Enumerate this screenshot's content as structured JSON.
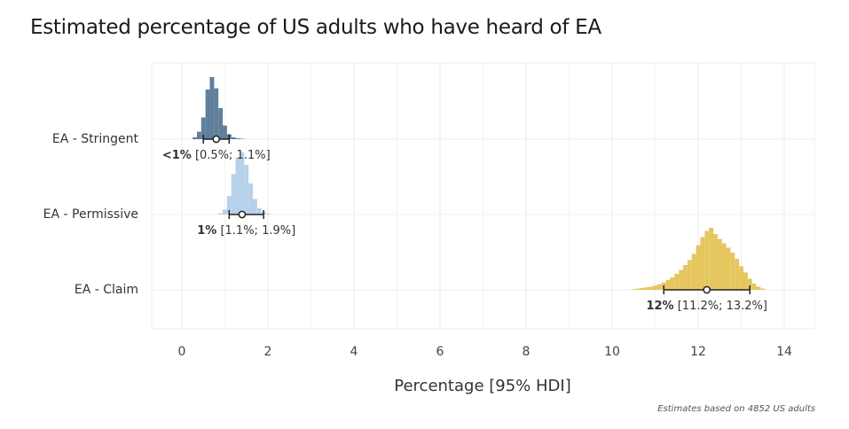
{
  "chart_data": {
    "type": "interval",
    "title": "Estimated percentage of US adults who have heard of EA",
    "xlabel": "Percentage [95% HDI]",
    "ylabel": "",
    "xlim": [
      -0.7,
      14.7
    ],
    "xticks": [
      0,
      2,
      4,
      6,
      8,
      10,
      12,
      14
    ],
    "grid": true,
    "caption": "Estimates based on 4852 US adults",
    "series": [
      {
        "name": "EA - Stringent",
        "color": "#5f7f9c",
        "point": 0.8,
        "hdi": [
          0.5,
          1.1
        ],
        "label_bold": "<1%",
        "label_rest": " [0.5%; 1.1%]",
        "bin_width": 0.1,
        "bins": [
          {
            "x": 0.3,
            "d": 0.03
          },
          {
            "x": 0.4,
            "d": 0.12
          },
          {
            "x": 0.5,
            "d": 0.35
          },
          {
            "x": 0.6,
            "d": 0.8
          },
          {
            "x": 0.7,
            "d": 1.0
          },
          {
            "x": 0.8,
            "d": 0.82
          },
          {
            "x": 0.9,
            "d": 0.5
          },
          {
            "x": 1.0,
            "d": 0.22
          },
          {
            "x": 1.1,
            "d": 0.08
          },
          {
            "x": 1.2,
            "d": 0.03
          },
          {
            "x": 1.3,
            "d": 0.015
          },
          {
            "x": 1.4,
            "d": 0.008
          }
        ]
      },
      {
        "name": "EA - Permissive",
        "color": "#b5d1ea",
        "point": 1.4,
        "hdi": [
          1.1,
          1.9
        ],
        "label_bold": "1%",
        "label_rest": " [1.1%; 1.9%]",
        "bin_width": 0.1,
        "bins": [
          {
            "x": 0.9,
            "d": 0.02
          },
          {
            "x": 1.0,
            "d": 0.08
          },
          {
            "x": 1.1,
            "d": 0.3
          },
          {
            "x": 1.2,
            "d": 0.65
          },
          {
            "x": 1.3,
            "d": 0.92
          },
          {
            "x": 1.4,
            "d": 1.0
          },
          {
            "x": 1.5,
            "d": 0.8
          },
          {
            "x": 1.6,
            "d": 0.5
          },
          {
            "x": 1.7,
            "d": 0.25
          },
          {
            "x": 1.8,
            "d": 0.1
          },
          {
            "x": 1.9,
            "d": 0.04
          },
          {
            "x": 2.0,
            "d": 0.015
          }
        ]
      },
      {
        "name": "EA - Claim",
        "color": "#e5c65f",
        "point": 12.2,
        "hdi": [
          11.2,
          13.2
        ],
        "label_bold": "12%",
        "label_rest": " [11.2%; 13.2%]",
        "bin_width": 0.1,
        "bins": [
          {
            "x": 10.5,
            "d": 0.01
          },
          {
            "x": 10.6,
            "d": 0.02
          },
          {
            "x": 10.7,
            "d": 0.03
          },
          {
            "x": 10.8,
            "d": 0.04
          },
          {
            "x": 10.9,
            "d": 0.05
          },
          {
            "x": 11.0,
            "d": 0.07
          },
          {
            "x": 11.1,
            "d": 0.09
          },
          {
            "x": 11.2,
            "d": 0.12
          },
          {
            "x": 11.3,
            "d": 0.16
          },
          {
            "x": 11.4,
            "d": 0.2
          },
          {
            "x": 11.5,
            "d": 0.26
          },
          {
            "x": 11.6,
            "d": 0.32
          },
          {
            "x": 11.7,
            "d": 0.4
          },
          {
            "x": 11.8,
            "d": 0.48
          },
          {
            "x": 11.9,
            "d": 0.58
          },
          {
            "x": 12.0,
            "d": 0.72
          },
          {
            "x": 12.1,
            "d": 0.85
          },
          {
            "x": 12.2,
            "d": 0.95
          },
          {
            "x": 12.3,
            "d": 1.0
          },
          {
            "x": 12.4,
            "d": 0.9
          },
          {
            "x": 12.5,
            "d": 0.82
          },
          {
            "x": 12.6,
            "d": 0.75
          },
          {
            "x": 12.7,
            "d": 0.68
          },
          {
            "x": 12.8,
            "d": 0.6
          },
          {
            "x": 12.9,
            "d": 0.5
          },
          {
            "x": 13.0,
            "d": 0.38
          },
          {
            "x": 13.1,
            "d": 0.28
          },
          {
            "x": 13.2,
            "d": 0.18
          },
          {
            "x": 13.3,
            "d": 0.1
          },
          {
            "x": 13.4,
            "d": 0.05
          },
          {
            "x": 13.5,
            "d": 0.02
          }
        ]
      }
    ]
  }
}
